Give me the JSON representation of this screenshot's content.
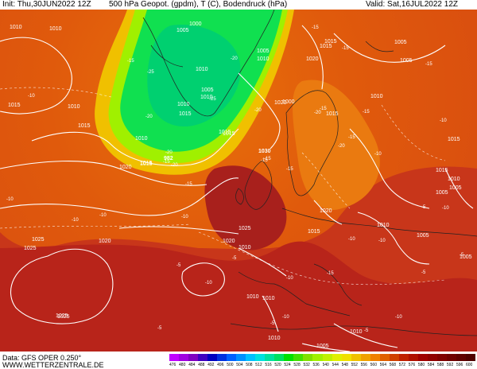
{
  "header": {
    "init": "Init: Thu,30JUN2022 12Z",
    "title": "500 hPa Geopot. (gpdm), T (C), Bodendruck (hPa)",
    "valid": "Valid: Sat,16JUL2022 12Z"
  },
  "footer": {
    "data_source": "Data: GFS OPER 0.250°",
    "website": "WWW.WETTERZENTRALE.DE"
  },
  "colorbar": {
    "labels": [
      "476",
      "480",
      "484",
      "488",
      "492",
      "496",
      "500",
      "504",
      "508",
      "512",
      "516",
      "520",
      "524",
      "528",
      "532",
      "536",
      "540",
      "544",
      "548",
      "552",
      "556",
      "560",
      "564",
      "568",
      "572",
      "576",
      "580",
      "584",
      "588",
      "592",
      "596",
      "600"
    ],
    "colors": [
      "#c000ff",
      "#a000e0",
      "#8000c0",
      "#4000c0",
      "#0000c0",
      "#0030e0",
      "#0060ff",
      "#0090ff",
      "#00c0ff",
      "#00e0e0",
      "#00e0a0",
      "#00e060",
      "#00e000",
      "#40e000",
      "#80e000",
      "#a0f000",
      "#c0f000",
      "#e0f000",
      "#f0e000",
      "#f0c000",
      "#f0a000",
      "#f08000",
      "#e06000",
      "#d04000",
      "#c02000",
      "#b01000",
      "#a00000",
      "#900000",
      "#800000",
      "#700000",
      "#600000",
      "#500000"
    ]
  },
  "map": {
    "isobars": [
      "1010",
      "1000",
      "1005",
      "1010",
      "1015",
      "1005",
      "1010",
      "1010",
      "1015",
      "1005",
      "1010",
      "1015",
      "1020",
      "1015",
      "1005",
      "1025",
      "1010",
      "1015",
      "1025",
      "1010",
      "1015",
      "1020",
      "1015",
      "1020",
      "1025",
      "1020",
      "1025",
      "1010",
      "1010",
      "1005",
      "1010",
      "1015",
      "1015",
      "1005",
      "1020",
      "1015",
      "1010",
      "1005",
      "1000",
      "1010",
      "1005",
      "1005",
      "1015",
      "1010",
      "1025",
      "1010",
      "1015",
      "1010",
      "1005",
      "1015",
      "1020",
      "1010"
    ],
    "temperatures": [
      "-15",
      "-20",
      "-20",
      "-25",
      "-20",
      "-25",
      "-15",
      "-20",
      "-15",
      "-20",
      "-15",
      "-10",
      "-20",
      "-15",
      "-15",
      "-15",
      "-20",
      "-15",
      "-15",
      "-15",
      "-10",
      "-15",
      "-15",
      "-10",
      "-10",
      "-10",
      "-15",
      "-5",
      "-10",
      "-10",
      "-5",
      "-5",
      "-10",
      "-10",
      "-5",
      "-10",
      "-5",
      "-10",
      "-5",
      "-5",
      "-10",
      "-10",
      "-5",
      "-10"
    ],
    "lows": [
      "982",
      "1030"
    ]
  }
}
